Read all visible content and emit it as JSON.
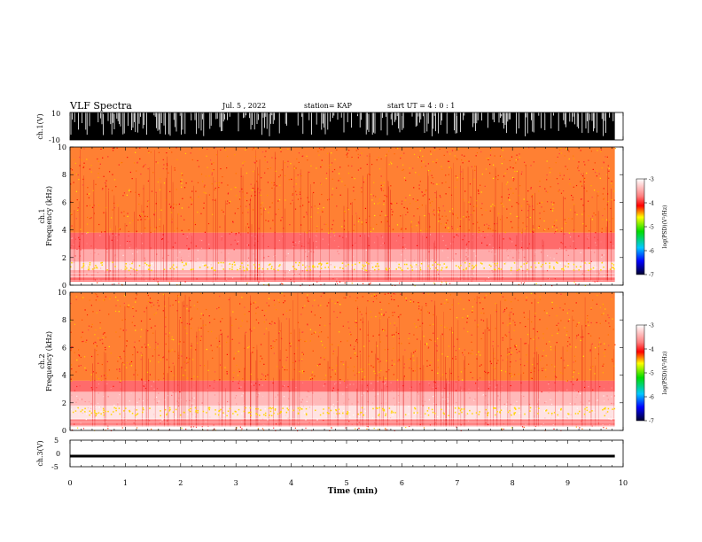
{
  "header": {
    "title": "VLF Spectra",
    "date": "Jul. 5 , 2022",
    "station": "station= KAP",
    "start": "start UT = 4 : 0 : 1"
  },
  "colorbar": {
    "ticks": [
      "-3",
      "-4",
      "-5",
      "-6",
      "-7"
    ],
    "label": "log(PSD)(V²/Hz)"
  },
  "chart_data": [
    {
      "type": "line",
      "panel": "ch.1 waveform",
      "ylabel": "ch.1(V)",
      "ylim": [
        -10,
        10
      ],
      "yticks": [
        "10",
        "-10"
      ],
      "xlim": [
        0,
        10
      ],
      "note": "dense saturated waveform, top near +10 V with dropouts to about 0 V, bottom pinned at -10 V; data ends near 9.85 min"
    },
    {
      "type": "heatmap",
      "panel": "ch.1 spectrogram",
      "ylabel": "ch.1 Frequency (kHz)",
      "xlim": [
        0,
        10
      ],
      "ylim": [
        0,
        10
      ],
      "yticks": [
        "0",
        "2",
        "4",
        "6",
        "8",
        "10"
      ],
      "zlim": [
        -7,
        -3
      ],
      "bands": [
        {
          "f_low": 0.25,
          "f_high": 0.55,
          "log_psd": -3.9
        },
        {
          "f_low": 0.55,
          "f_high": 1.1,
          "log_psd": -3.6
        },
        {
          "f_low": 1.1,
          "f_high": 1.7,
          "log_psd": -3.2
        },
        {
          "f_low": 1.7,
          "f_high": 2.6,
          "log_psd": -3.6
        },
        {
          "f_low": 2.6,
          "f_high": 3.8,
          "log_psd": -3.9
        },
        {
          "f_low": 3.8,
          "f_high": 10,
          "log_psd": -4.3
        }
      ]
    },
    {
      "type": "heatmap",
      "panel": "ch.2 spectrogram",
      "ylabel": "ch.2 Frequency (kHz)",
      "xlim": [
        0,
        10
      ],
      "ylim": [
        0,
        10
      ],
      "yticks": [
        "0",
        "2",
        "4",
        "6",
        "8",
        "10"
      ],
      "zlim": [
        -7,
        -3
      ],
      "bands": [
        {
          "f_low": 0.3,
          "f_high": 0.8,
          "log_psd": -3.8
        },
        {
          "f_low": 0.8,
          "f_high": 1.8,
          "log_psd": -3.2
        },
        {
          "f_low": 1.8,
          "f_high": 2.8,
          "log_psd": -3.5
        },
        {
          "f_low": 2.8,
          "f_high": 3.6,
          "log_psd": -3.9
        },
        {
          "f_low": 3.6,
          "f_high": 10,
          "log_psd": -4.3
        }
      ]
    },
    {
      "type": "line",
      "panel": "ch.3 waveform",
      "ylabel": "ch.3(V)",
      "ylim": [
        -5,
        5
      ],
      "yticks": [
        "5",
        "0",
        "-5"
      ],
      "xlim": [
        0,
        10
      ],
      "band_range": [
        -1.5,
        -0.5
      ],
      "note": "narrow constant-amplitude band centred near -1 V"
    }
  ],
  "xaxis": {
    "label": "Time (min)",
    "ticks": [
      "0",
      "1",
      "2",
      "3",
      "4",
      "5",
      "6",
      "7",
      "8",
      "9",
      "10"
    ]
  }
}
